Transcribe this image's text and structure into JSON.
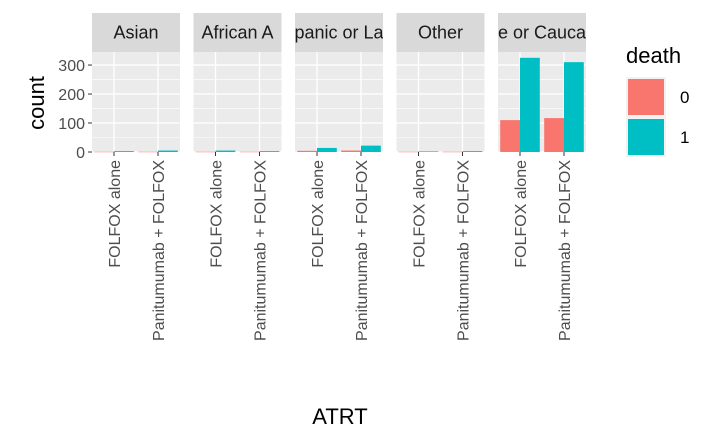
{
  "chart_data": {
    "type": "bar",
    "xlabel": "ATRT",
    "ylabel": "count",
    "ylim": [
      0,
      345
    ],
    "yticks": [
      0,
      100,
      200,
      300
    ],
    "categories": [
      "FOLFOX alone",
      "Panitumumab + FOLFOX"
    ],
    "facets": [
      {
        "label": "Asian",
        "series": [
          {
            "name": "0",
            "values": [
              1,
              1
            ]
          },
          {
            "name": "1",
            "values": [
              3,
              5
            ]
          }
        ]
      },
      {
        "label": "African A",
        "series": [
          {
            "name": "0",
            "values": [
              1,
              1
            ]
          },
          {
            "name": "1",
            "values": [
              5,
              3
            ]
          }
        ]
      },
      {
        "label": "panic or La",
        "series": [
          {
            "name": "0",
            "values": [
              4,
              5
            ]
          },
          {
            "name": "1",
            "values": [
              14,
              22
            ]
          }
        ]
      },
      {
        "label": "Other",
        "series": [
          {
            "name": "0",
            "values": [
              1,
              1
            ]
          },
          {
            "name": "1",
            "values": [
              2,
              3
            ]
          }
        ]
      },
      {
        "label": "e or Cauca",
        "series": [
          {
            "name": "0",
            "values": [
              110,
              117
            ]
          },
          {
            "name": "1",
            "values": [
              325,
              310
            ]
          }
        ]
      }
    ],
    "legend": {
      "title": "death",
      "entries": [
        "0",
        "1"
      ],
      "placement": "right"
    },
    "colors": {
      "0": "#F8766D",
      "1": "#00BFC4",
      "panel_bg": "#EBEBEB",
      "strip_bg": "#D9D9D9",
      "grid": "#FFFFFF"
    },
    "grid": true
  }
}
